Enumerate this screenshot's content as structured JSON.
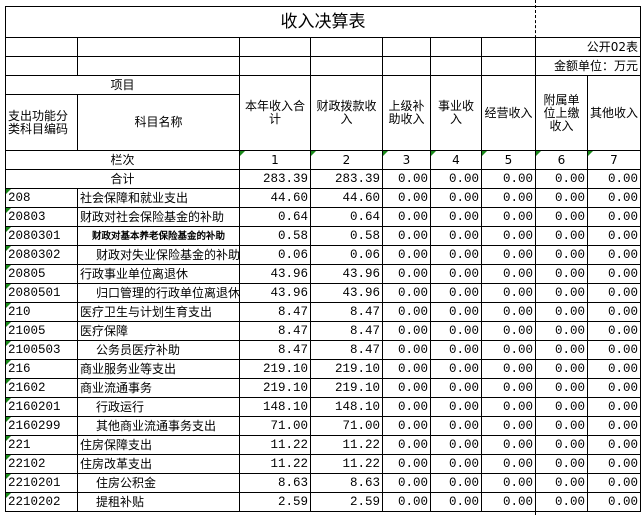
{
  "title": "收入决算表",
  "table_no": "公开02表",
  "unit": "金额单位：万元",
  "headers": {
    "item": "项目",
    "code": "支出功能分类科目编码",
    "name": "科目名称",
    "cols": [
      "本年收入合计",
      "财政拨款收入",
      "上级补助收入",
      "事业收入",
      "经营收入",
      "附属单位上缴收入",
      "其他收入"
    ]
  },
  "column_index_label": "栏次",
  "column_index": [
    "1",
    "2",
    "3",
    "4",
    "5",
    "6",
    "7"
  ],
  "total": {
    "label": "合计",
    "values": [
      "283.39",
      "283.39",
      "0.00",
      "0.00",
      "0.00",
      "0.00",
      "0.00"
    ]
  },
  "rows": [
    {
      "code": "208",
      "name": "社会保障和就业支出",
      "level": 1,
      "values": [
        "44.60",
        "44.60",
        "0.00",
        "0.00",
        "0.00",
        "0.00",
        "0.00"
      ]
    },
    {
      "code": "20803",
      "name": "财政对社会保险基金的补助",
      "level": 1,
      "values": [
        "0.64",
        "0.64",
        "0.00",
        "0.00",
        "0.00",
        "0.00",
        "0.00"
      ]
    },
    {
      "code": "2080301",
      "name": "财政对基本养老保险基金的补助",
      "level": 3,
      "values": [
        "0.58",
        "0.58",
        "0.00",
        "0.00",
        "0.00",
        "0.00",
        "0.00"
      ]
    },
    {
      "code": "2080302",
      "name": "财政对失业保险基金的补助",
      "level": 2,
      "values": [
        "0.06",
        "0.06",
        "0.00",
        "0.00",
        "0.00",
        "0.00",
        "0.00"
      ]
    },
    {
      "code": "20805",
      "name": "行政事业单位离退休",
      "level": 1,
      "values": [
        "43.96",
        "43.96",
        "0.00",
        "0.00",
        "0.00",
        "0.00",
        "0.00"
      ]
    },
    {
      "code": "2080501",
      "name": "归口管理的行政单位离退休",
      "level": 2,
      "values": [
        "43.96",
        "43.96",
        "0.00",
        "0.00",
        "0.00",
        "0.00",
        "0.00"
      ]
    },
    {
      "code": "210",
      "name": "医疗卫生与计划生育支出",
      "level": 1,
      "values": [
        "8.47",
        "8.47",
        "0.00",
        "0.00",
        "0.00",
        "0.00",
        "0.00"
      ]
    },
    {
      "code": "21005",
      "name": "医疗保障",
      "level": 1,
      "values": [
        "8.47",
        "8.47",
        "0.00",
        "0.00",
        "0.00",
        "0.00",
        "0.00"
      ]
    },
    {
      "code": "2100503",
      "name": "公务员医疗补助",
      "level": 2,
      "values": [
        "8.47",
        "8.47",
        "0.00",
        "0.00",
        "0.00",
        "0.00",
        "0.00"
      ]
    },
    {
      "code": "216",
      "name": "商业服务业等支出",
      "level": 1,
      "values": [
        "219.10",
        "219.10",
        "0.00",
        "0.00",
        "0.00",
        "0.00",
        "0.00"
      ]
    },
    {
      "code": "21602",
      "name": "商业流通事务",
      "level": 1,
      "values": [
        "219.10",
        "219.10",
        "0.00",
        "0.00",
        "0.00",
        "0.00",
        "0.00"
      ]
    },
    {
      "code": "2160201",
      "name": "行政运行",
      "level": 2,
      "values": [
        "148.10",
        "148.10",
        "0.00",
        "0.00",
        "0.00",
        "0.00",
        "0.00"
      ]
    },
    {
      "code": "2160299",
      "name": "其他商业流通事务支出",
      "level": 2,
      "values": [
        "71.00",
        "71.00",
        "0.00",
        "0.00",
        "0.00",
        "0.00",
        "0.00"
      ]
    },
    {
      "code": "221",
      "name": "住房保障支出",
      "level": 1,
      "values": [
        "11.22",
        "11.22",
        "0.00",
        "0.00",
        "0.00",
        "0.00",
        "0.00"
      ]
    },
    {
      "code": "22102",
      "name": "住房改革支出",
      "level": 1,
      "values": [
        "11.22",
        "11.22",
        "0.00",
        "0.00",
        "0.00",
        "0.00",
        "0.00"
      ]
    },
    {
      "code": "2210201",
      "name": "住房公积金",
      "level": 2,
      "values": [
        "8.63",
        "8.63",
        "0.00",
        "0.00",
        "0.00",
        "0.00",
        "0.00"
      ]
    },
    {
      "code": "2210202",
      "name": "提租补贴",
      "level": 2,
      "values": [
        "2.59",
        "2.59",
        "0.00",
        "0.00",
        "0.00",
        "0.00",
        "0.00"
      ]
    }
  ],
  "colors": {
    "grid": "#000000",
    "comment_marker": "#1a8a1a"
  }
}
